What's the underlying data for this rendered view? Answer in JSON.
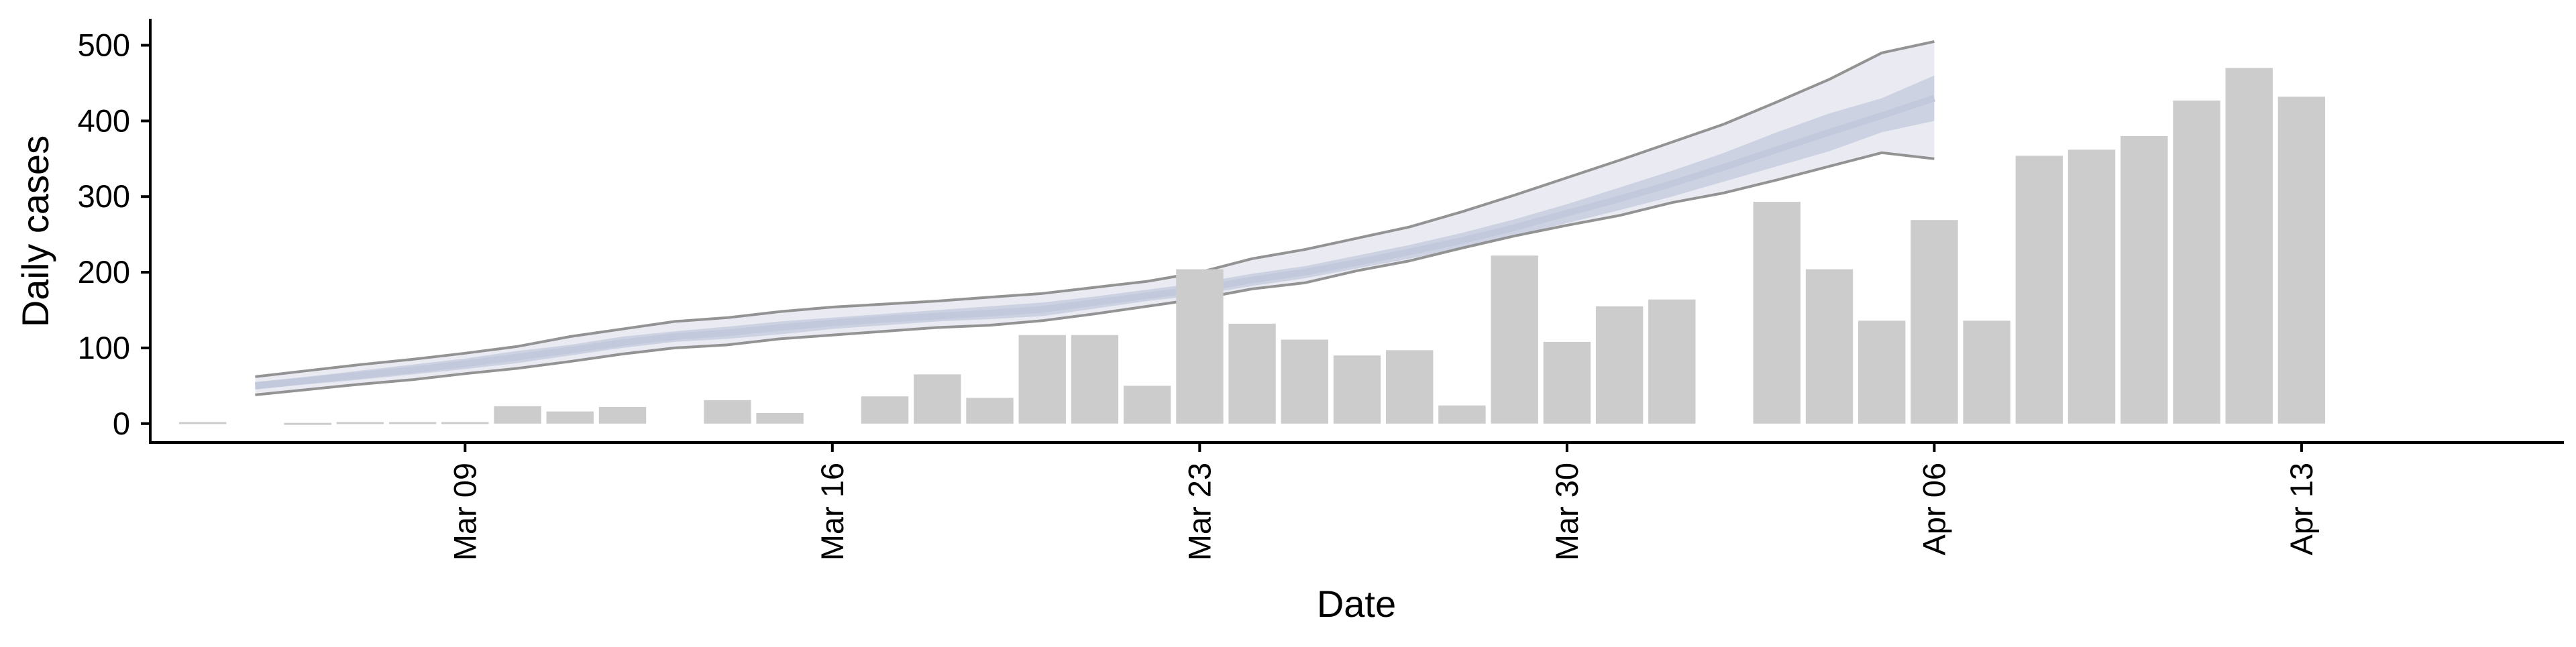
{
  "chart_data": {
    "type": "bar",
    "title": "",
    "xlabel": "Date",
    "ylabel": "Daily cases",
    "ylim": [
      -25,
      535
    ],
    "xlim": [
      "2020-03-03",
      "2020-04-18"
    ],
    "grid": false,
    "legend": "none",
    "y_ticks": [
      0,
      100,
      200,
      300,
      400,
      500
    ],
    "x_ticks": [
      {
        "date": "2020-03-09",
        "label": "Mar 09"
      },
      {
        "date": "2020-03-16",
        "label": "Mar 16"
      },
      {
        "date": "2020-03-23",
        "label": "Mar 23"
      },
      {
        "date": "2020-03-30",
        "label": "Mar 30"
      },
      {
        "date": "2020-04-06",
        "label": "Apr 06"
      },
      {
        "date": "2020-04-13",
        "label": "Apr 13"
      }
    ],
    "bars": {
      "color": "#cccccc",
      "dates": [
        "2020-03-04",
        "2020-03-05",
        "2020-03-06",
        "2020-03-07",
        "2020-03-08",
        "2020-03-09",
        "2020-03-10",
        "2020-03-11",
        "2020-03-12",
        "2020-03-13",
        "2020-03-14",
        "2020-03-15",
        "2020-03-16",
        "2020-03-17",
        "2020-03-18",
        "2020-03-19",
        "2020-03-20",
        "2020-03-21",
        "2020-03-22",
        "2020-03-23",
        "2020-03-24",
        "2020-03-25",
        "2020-03-26",
        "2020-03-27",
        "2020-03-28",
        "2020-03-29",
        "2020-03-30",
        "2020-03-31",
        "2020-04-01",
        "2020-04-02",
        "2020-04-03",
        "2020-04-04",
        "2020-04-05",
        "2020-04-06",
        "2020-04-07",
        "2020-04-08",
        "2020-04-09",
        "2020-04-10",
        "2020-04-11",
        "2020-04-12",
        "2020-04-13",
        "2020-04-14",
        "2020-04-15"
      ],
      "values": [
        2,
        0,
        1,
        2,
        2,
        2,
        23,
        16,
        22,
        0,
        31,
        14,
        0,
        36,
        65,
        34,
        117,
        117,
        50,
        204,
        132,
        111,
        90,
        97,
        24,
        222,
        108,
        155,
        164,
        0,
        293,
        204,
        136,
        269,
        136,
        354,
        362,
        380,
        427,
        470,
        432,
        0,
        0
      ]
    },
    "forecast": {
      "dates": [
        "2020-03-05",
        "2020-03-06",
        "2020-03-07",
        "2020-03-08",
        "2020-03-09",
        "2020-03-10",
        "2020-03-11",
        "2020-03-12",
        "2020-03-13",
        "2020-03-14",
        "2020-03-15",
        "2020-03-16",
        "2020-03-17",
        "2020-03-18",
        "2020-03-19",
        "2020-03-20",
        "2020-03-21",
        "2020-03-22",
        "2020-03-23",
        "2020-03-24",
        "2020-03-25",
        "2020-03-26",
        "2020-03-27",
        "2020-03-28",
        "2020-03-29",
        "2020-03-30",
        "2020-03-31",
        "2020-04-01",
        "2020-04-02",
        "2020-04-03",
        "2020-04-04",
        "2020-04-05",
        "2020-04-06"
      ],
      "outer_upper": [
        62,
        70,
        78,
        85,
        93,
        102,
        115,
        125,
        135,
        140,
        148,
        154,
        158,
        162,
        167,
        172,
        180,
        188,
        200,
        218,
        230,
        245,
        260,
        280,
        302,
        325,
        348,
        372,
        396,
        425,
        455,
        490,
        505
      ],
      "outer_lower": [
        38,
        45,
        52,
        58,
        66,
        73,
        82,
        92,
        100,
        104,
        112,
        117,
        122,
        127,
        130,
        136,
        145,
        155,
        165,
        178,
        186,
        202,
        215,
        232,
        248,
        262,
        275,
        292,
        305,
        322,
        340,
        358,
        350
      ],
      "inner_upper": [
        55,
        62,
        70,
        78,
        86,
        96,
        104,
        115,
        122,
        128,
        135,
        140,
        145,
        150,
        155,
        160,
        168,
        177,
        186,
        198,
        208,
        222,
        236,
        252,
        270,
        290,
        312,
        334,
        358,
        385,
        410,
        430,
        460
      ],
      "inner_lower": [
        45,
        52,
        58,
        65,
        72,
        80,
        90,
        100,
        108,
        112,
        118,
        125,
        130,
        135,
        138,
        142,
        152,
        162,
        170,
        182,
        192,
        205,
        218,
        232,
        248,
        265,
        282,
        300,
        320,
        340,
        360,
        385,
        400
      ],
      "median": [
        50,
        57,
        64,
        71,
        79,
        88,
        97,
        107,
        115,
        120,
        127,
        133,
        138,
        142,
        146,
        151,
        160,
        169,
        178,
        190,
        200,
        213,
        227,
        242,
        259,
        278,
        297,
        317,
        339,
        362,
        385,
        407,
        430
      ],
      "colors": {
        "outer_fill": "#e9eaf2",
        "inner_fill": "#cdd2e2",
        "median": "#c3c9dd",
        "bound_line": "#888888"
      }
    }
  }
}
